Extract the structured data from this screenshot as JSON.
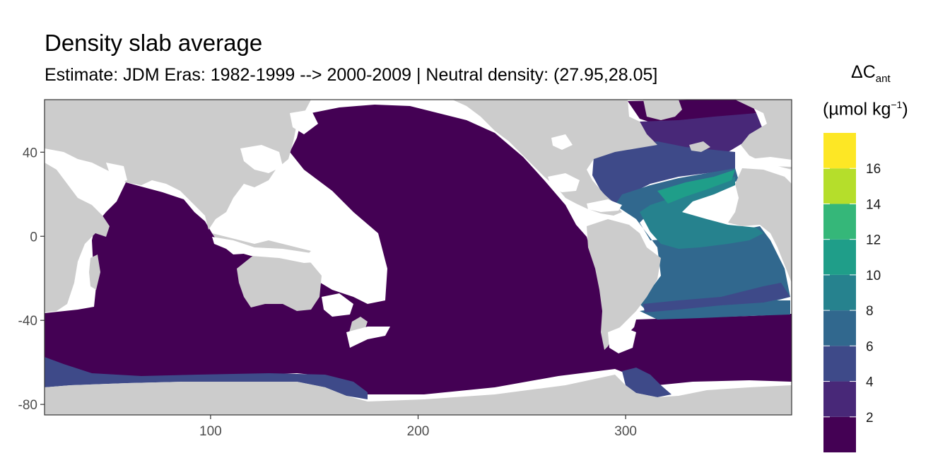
{
  "title": "Density slab average",
  "subtitle": "Estimate: JDM Eras: 1982-1999 --> 2000-2009 | Neutral density: (27.95,28.05]",
  "legend": {
    "title_line1_main": "ΔC",
    "title_line1_sub": "ant",
    "title_line2_pre": "(µmol kg",
    "title_line2_sup": "−1",
    "title_line2_post": ")"
  },
  "colors": {
    "land": "#cccccc",
    "no_data": "#ffffff",
    "bins": [
      "#440154",
      "#482878",
      "#3e4a89",
      "#31688e",
      "#26828e",
      "#1f9e89",
      "#35b779",
      "#6ece58",
      "#b5de2b",
      "#fde725"
    ]
  },
  "chart_data": {
    "type": "heatmap",
    "title": "Density slab average",
    "subtitle": "Estimate: JDM Eras: 1982-1999 --> 2000-2009 | Neutral density: (27.95,28.05]",
    "xlabel": "",
    "ylabel": "",
    "xlim": [
      20,
      380
    ],
    "ylim": [
      -85,
      65
    ],
    "x_ticks": [
      100,
      200,
      300
    ],
    "y_ticks": [
      40,
      0,
      -40,
      -80
    ],
    "grid": true,
    "legend_position": "right",
    "legend_title": "ΔCant (µmol kg−1)",
    "color_scale": {
      "breaks": [
        2,
        4,
        6,
        8,
        10,
        12,
        14,
        16
      ],
      "range": [
        0,
        18
      ]
    },
    "regions": [
      {
        "name": "Indian & Pacific Ocean",
        "value_bin": "0-2"
      },
      {
        "name": "Southern Ocean",
        "value_bin": "0-2"
      },
      {
        "name": "Antarctic shelf margin",
        "value_bin": "4-6"
      },
      {
        "name": "Nordic Seas",
        "value_bin": "0-2"
      },
      {
        "name": "Subpolar North Atlantic",
        "value_bin": "2-4"
      },
      {
        "name": "Western North Atlantic",
        "value_bin": "6-10"
      },
      {
        "name": "Subtropical & Tropical Atlantic",
        "value_bin": "8-10"
      },
      {
        "name": "South Atlantic",
        "value_bin": "6-8"
      },
      {
        "name": "Iberian margin",
        "value_bin": "16-18"
      }
    ]
  }
}
